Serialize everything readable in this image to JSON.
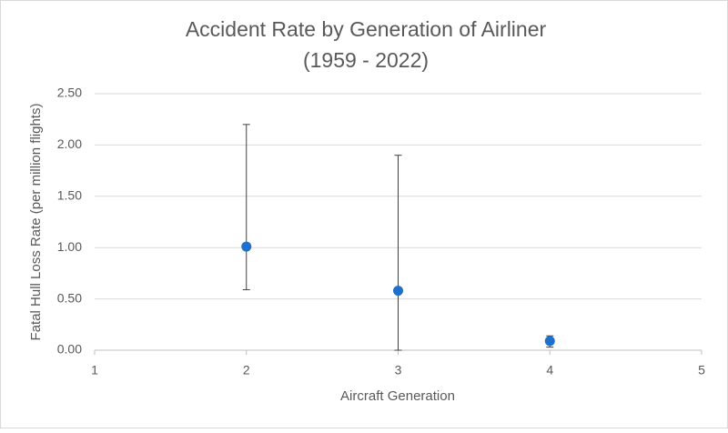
{
  "chart_data": {
    "type": "scatter",
    "title": "Accident Rate by Generation of Airliner",
    "subtitle": "(1959 - 2022)",
    "x_label": "Aircraft Generation",
    "y_label": "Fatal Hull Loss Rate (per million flights)",
    "x": [
      2,
      3,
      4
    ],
    "values": [
      1.01,
      0.58,
      0.09
    ],
    "error_minus": [
      0.42,
      0.58,
      0.06
    ],
    "error_plus": [
      1.19,
      1.32,
      0.05
    ],
    "color": "#1f6fcc",
    "xlim": [
      1,
      5
    ],
    "xticks": [
      1,
      2,
      3,
      4,
      5
    ],
    "ylim": [
      0,
      2.5
    ],
    "yticks": [
      {
        "value": 0,
        "label": "0.00"
      },
      {
        "value": 0.5,
        "label": "0.50"
      },
      {
        "value": 1,
        "label": "1.00"
      },
      {
        "value": 1.5,
        "label": "1.50"
      },
      {
        "value": 2,
        "label": "2.00"
      },
      {
        "value": 2.5,
        "label": "2.50"
      }
    ],
    "grid": true
  }
}
